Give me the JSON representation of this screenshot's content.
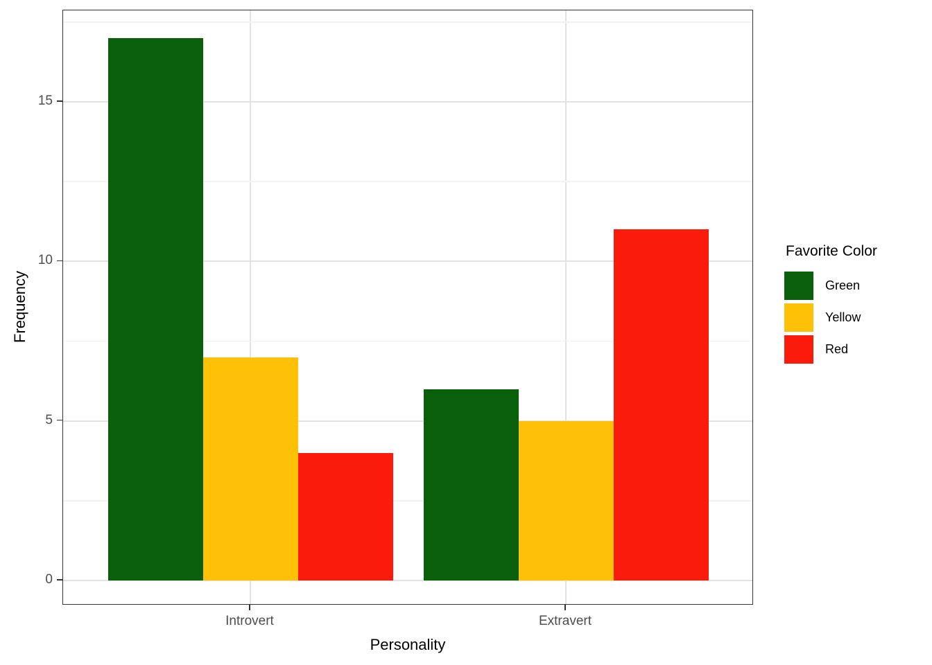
{
  "chart_data": {
    "type": "bar",
    "title": "",
    "xlabel": "Personality",
    "ylabel": "Frequency",
    "categories": [
      "Introvert",
      "Extravert"
    ],
    "series": [
      {
        "name": "Green",
        "color": "#0A5F0A",
        "values": [
          17,
          6
        ]
      },
      {
        "name": "Yellow",
        "color": "#FFC107",
        "values": [
          7,
          5
        ]
      },
      {
        "name": "Red",
        "color": "#FB1B0C",
        "values": [
          4,
          11
        ]
      }
    ],
    "y_ticks": [
      0,
      5,
      10,
      15
    ],
    "y_minor_ticks": [
      2.5,
      7.5,
      12.5,
      17.5
    ],
    "ylim": [
      -0.85,
      17.85
    ],
    "bar_grouping": "dodge",
    "grid": "horizontal-major-minor-plus-category-verticals",
    "legend": {
      "title": "Favorite Color",
      "position": "right",
      "entries": [
        "Green",
        "Yellow",
        "Red"
      ]
    },
    "panel_border_color": "#333333",
    "axis_text_color": "#4D4D4D"
  }
}
